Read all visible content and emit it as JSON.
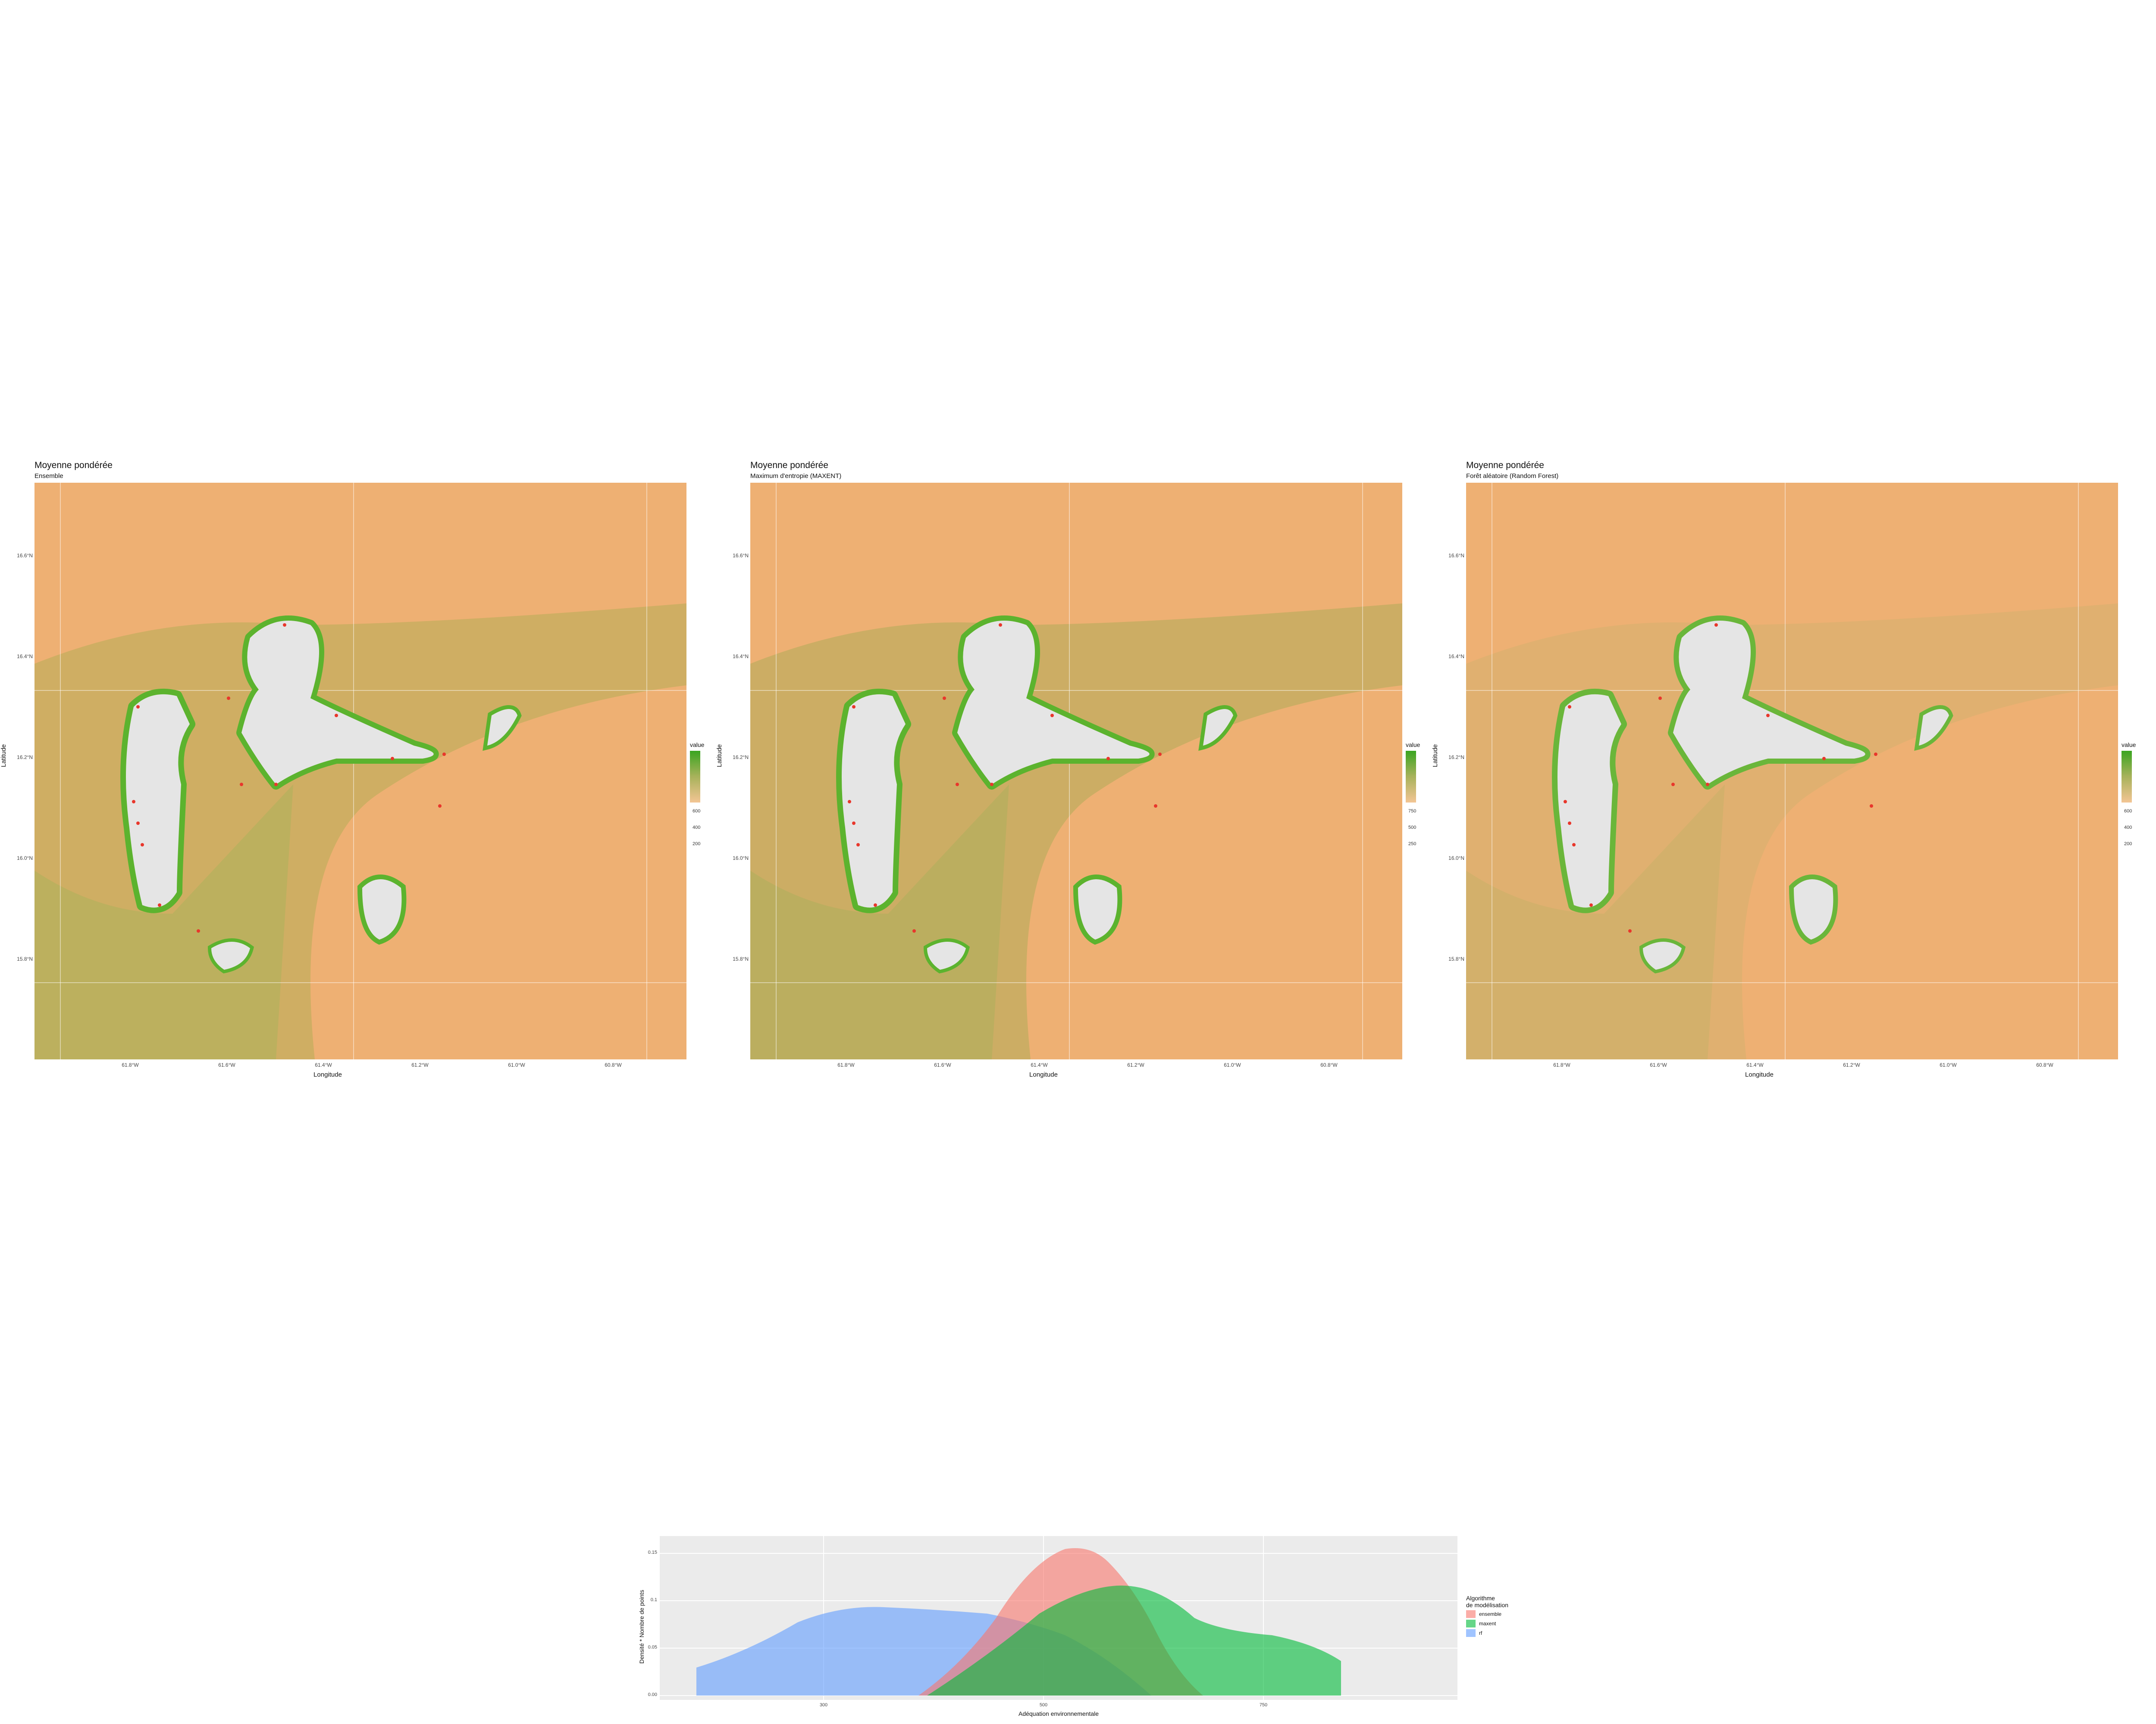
{
  "maps": [
    {
      "title": "Moyenne pondérée",
      "subtitle": "Ensemble",
      "legend_title": "value",
      "legend_ticks": [
        "600",
        "400",
        "200"
      ],
      "coast_color": "#5cb32e",
      "sea_tint": "#b6ad55",
      "left_shade": "#a9b15a"
    },
    {
      "title": "Moyenne pondérée",
      "subtitle": "Maximum d'entropie (MAXENT)",
      "legend_title": "value",
      "legend_ticks": [
        "750",
        "500",
        "250"
      ],
      "coast_color": "#5cb32e",
      "sea_tint": "#b1ac57",
      "left_shade": "#a9b05a"
    },
    {
      "title": "Moyenne pondérée",
      "subtitle": "Forêt aléatoire (Random Forest)",
      "legend_title": "value",
      "legend_ticks": [
        "600",
        "400",
        "200"
      ],
      "coast_color": "#6ab63a",
      "sea_tint": "#d6b06e",
      "left_shade": "#c6b066"
    }
  ],
  "axes": {
    "y_label": "Latitude",
    "x_label": "Longitude",
    "y_ticks": [
      "16.6°N",
      "16.4°N",
      "16.2°N",
      "16.0°N",
      "15.8°N"
    ],
    "x_ticks": [
      "61.8°W",
      "61.6°W",
      "61.4°W",
      "61.2°W",
      "61.0°W",
      "60.8°W"
    ]
  },
  "density": {
    "y_label": "Densité * Nombre de points",
    "x_label": "Adéquation environnementale",
    "legend_title_1": "Algorithme",
    "legend_title_2": "de modélisation",
    "y_ticks": [
      "0.15",
      "0.1",
      "0.05",
      "0.00"
    ],
    "x_ticks": [
      "300",
      "500",
      "750"
    ],
    "series": [
      {
        "name": "ensemble",
        "color": "#f8766d"
      },
      {
        "name": "maxent",
        "color": "#00ba38"
      },
      {
        "name": "rf",
        "color": "#619cff"
      }
    ]
  }
}
